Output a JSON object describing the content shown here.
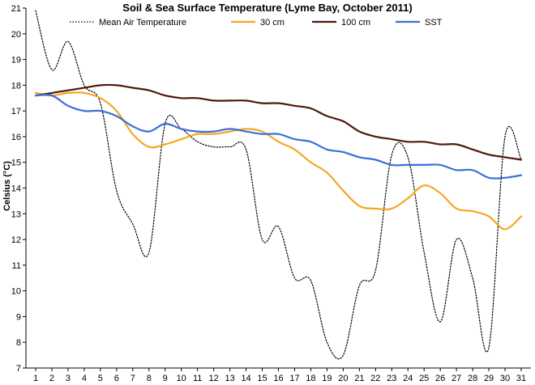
{
  "chart_data": {
    "type": "line",
    "title": "Soil & Sea Surface Temperature (Lyme Bay, October 2011)",
    "xlabel": "",
    "ylabel": "Celsius (°C)",
    "ylim": [
      7,
      21
    ],
    "yticks": [
      7,
      8,
      9,
      10,
      11,
      12,
      13,
      14,
      15,
      16,
      17,
      18,
      19,
      20,
      21
    ],
    "x": [
      1,
      2,
      3,
      4,
      5,
      6,
      7,
      8,
      9,
      10,
      11,
      12,
      13,
      14,
      15,
      16,
      17,
      18,
      19,
      20,
      21,
      22,
      23,
      24,
      25,
      26,
      27,
      28,
      29,
      30,
      31
    ],
    "grid": false,
    "legend_position": "top",
    "series": [
      {
        "name": "Mean Air Temperature",
        "color": "#000000",
        "style": "dotted",
        "values": [
          20.9,
          18.6,
          19.7,
          18.0,
          17.3,
          13.9,
          12.6,
          11.5,
          16.5,
          16.3,
          15.8,
          15.6,
          15.6,
          15.5,
          12.0,
          12.5,
          10.5,
          10.4,
          8.0,
          7.5,
          10.2,
          10.8,
          15.3,
          15.2,
          11.5,
          8.8,
          12.0,
          10.5,
          7.8,
          16.0,
          15.1
        ]
      },
      {
        "name": "30 cm",
        "color": "#f5a623",
        "style": "solid",
        "values": [
          17.7,
          17.6,
          17.7,
          17.7,
          17.5,
          17.0,
          16.1,
          15.6,
          15.7,
          15.9,
          16.1,
          16.1,
          16.2,
          16.3,
          16.2,
          15.8,
          15.5,
          15.0,
          14.6,
          13.9,
          13.3,
          13.2,
          13.2,
          13.6,
          14.1,
          13.8,
          13.2,
          13.1,
          12.9,
          12.4,
          12.9
        ]
      },
      {
        "name": "100 cm",
        "color": "#4d1a0a",
        "style": "solid",
        "values": [
          17.6,
          17.7,
          17.8,
          17.9,
          18.0,
          18.0,
          17.9,
          17.8,
          17.6,
          17.5,
          17.5,
          17.4,
          17.4,
          17.4,
          17.3,
          17.3,
          17.2,
          17.1,
          16.8,
          16.6,
          16.2,
          16.0,
          15.9,
          15.8,
          15.8,
          15.7,
          15.7,
          15.5,
          15.3,
          15.2,
          15.1
        ]
      },
      {
        "name": "SST",
        "color": "#3a6fd8",
        "style": "solid",
        "values": [
          17.6,
          17.6,
          17.2,
          17.0,
          17.0,
          16.8,
          16.4,
          16.2,
          16.5,
          16.3,
          16.2,
          16.2,
          16.3,
          16.2,
          16.1,
          16.1,
          15.9,
          15.8,
          15.5,
          15.4,
          15.2,
          15.1,
          14.9,
          14.9,
          14.9,
          14.9,
          14.7,
          14.7,
          14.4,
          14.4,
          14.5
        ]
      }
    ]
  }
}
